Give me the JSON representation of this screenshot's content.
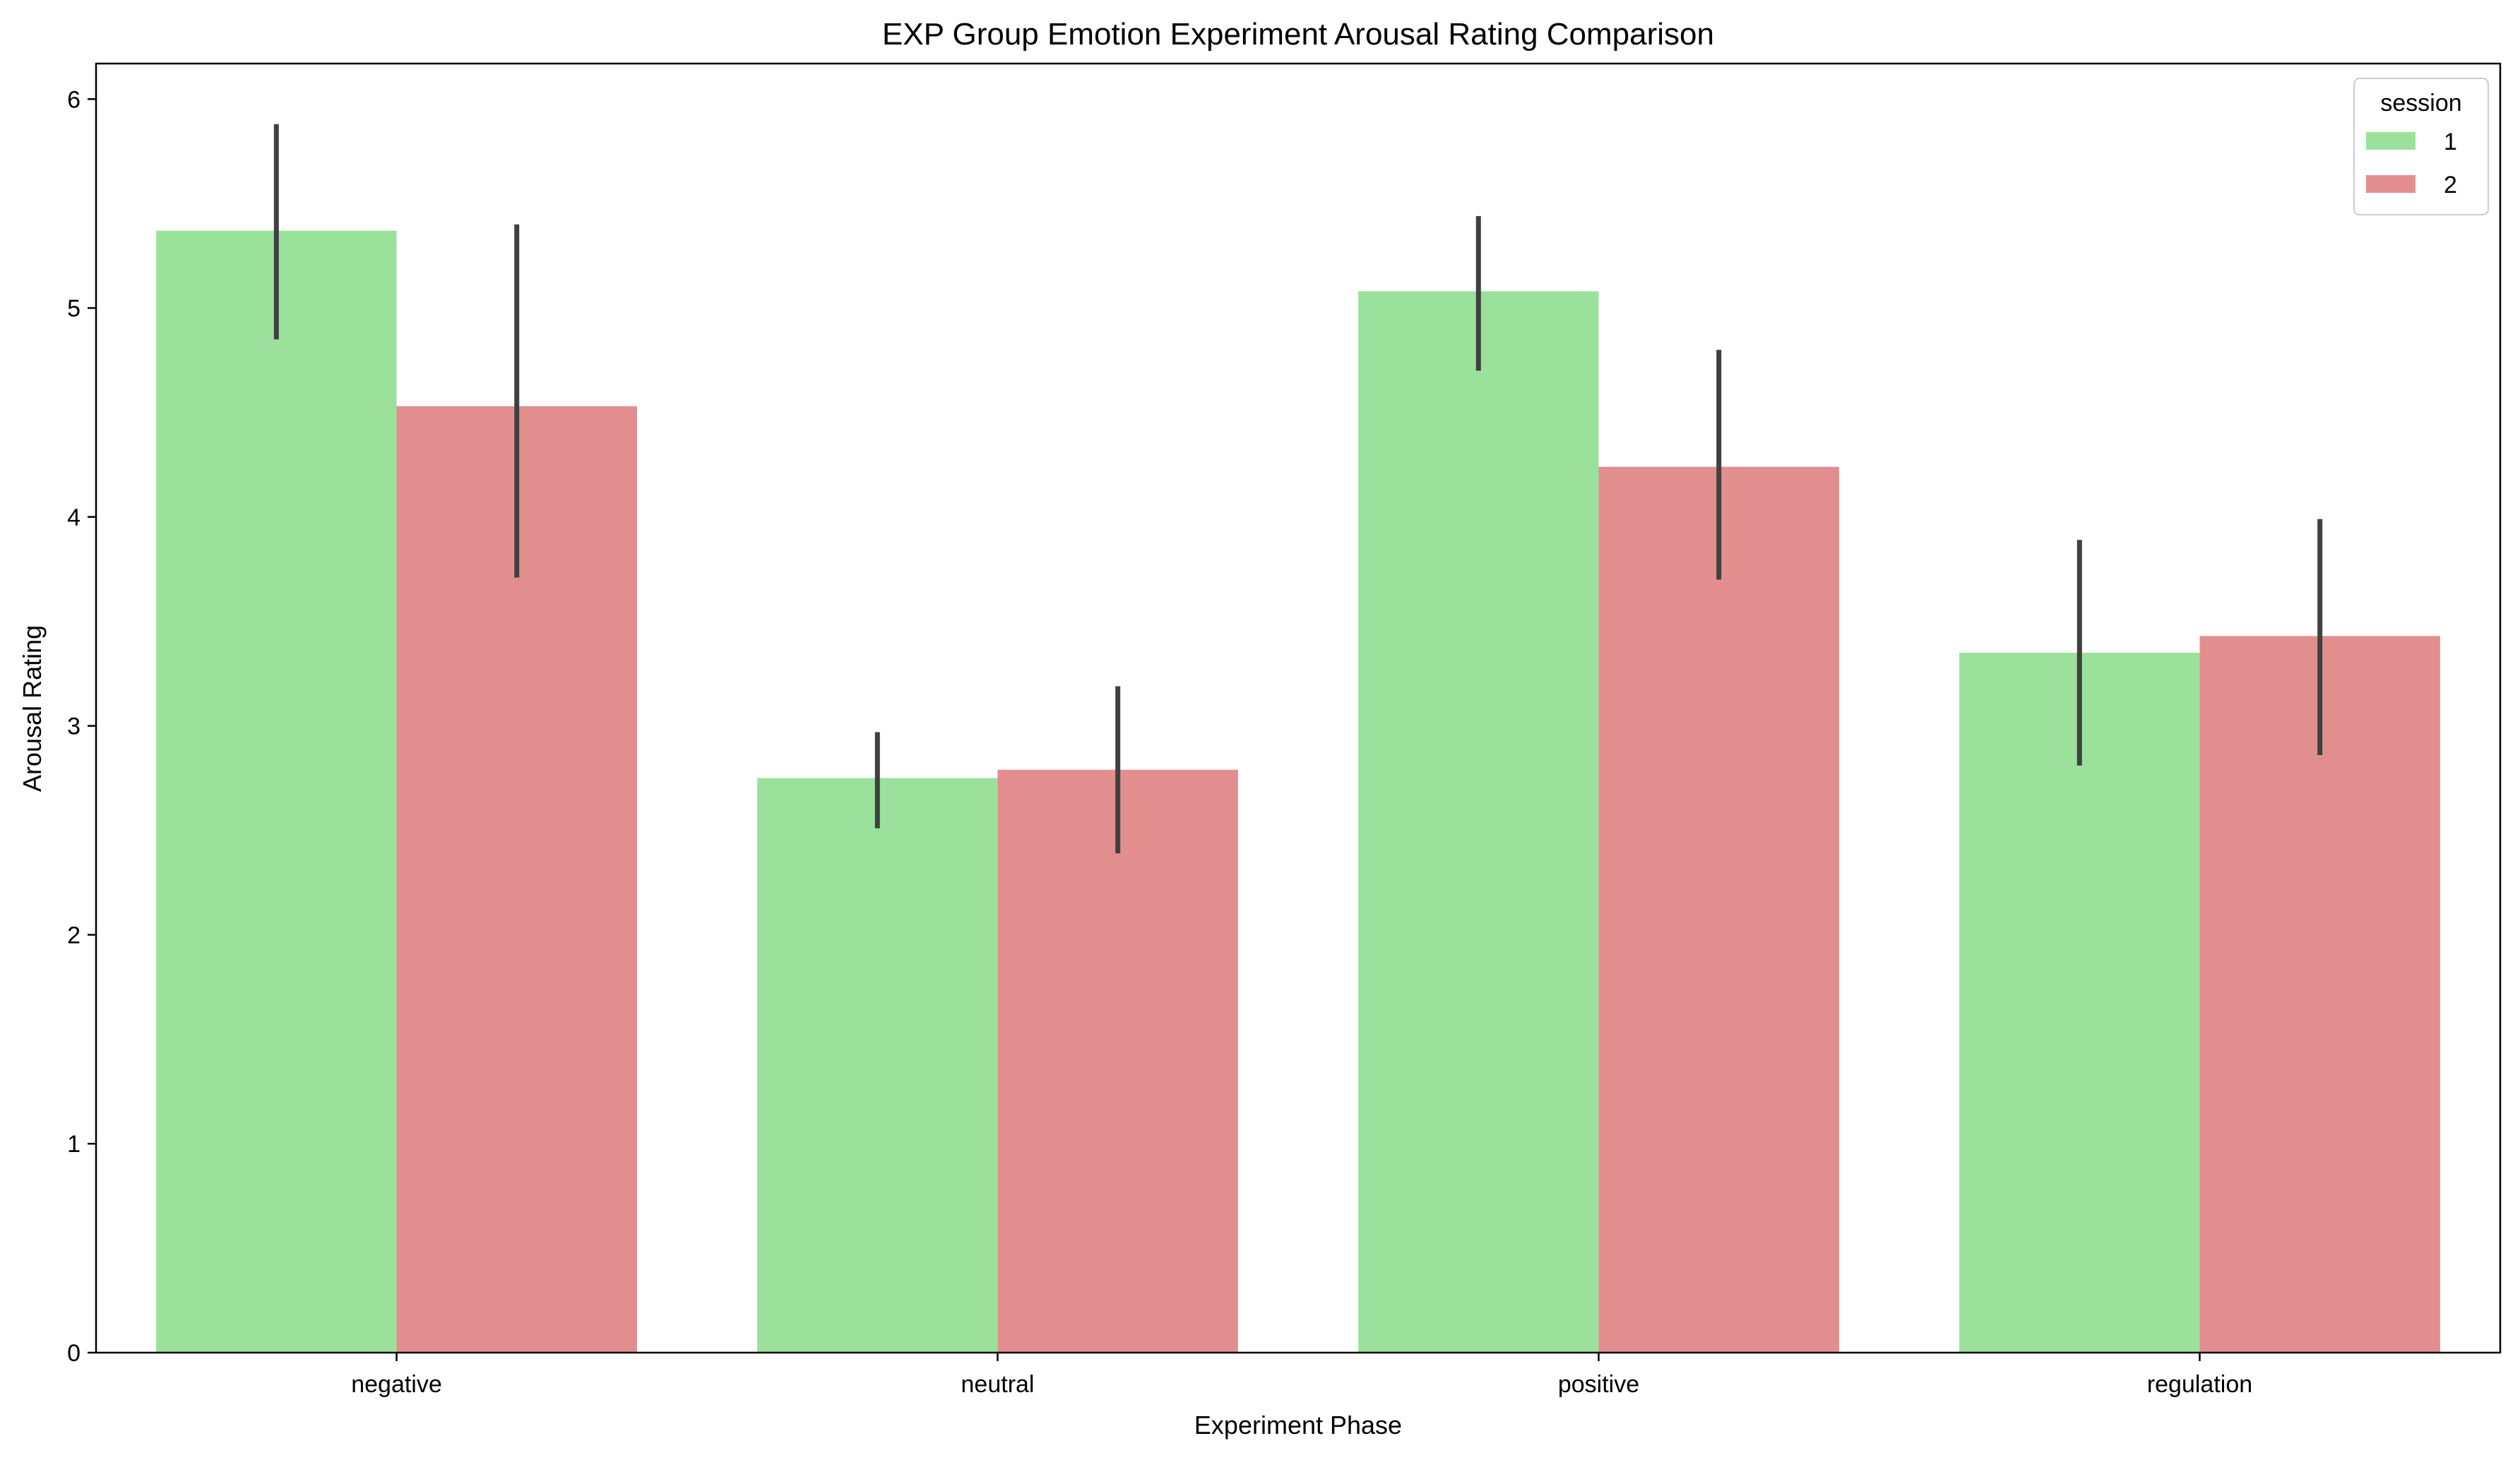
{
  "chart_data": {
    "type": "bar",
    "title": "EXP Group Emotion Experiment Arousal Rating Comparison",
    "xlabel": "Experiment Phase",
    "ylabel": "Arousal Rating",
    "categories": [
      "negative",
      "neutral",
      "positive",
      "regulation"
    ],
    "ylim": [
      0,
      6.17
    ],
    "yticks": [
      "0",
      "1",
      "2",
      "3",
      "4",
      "5",
      "6"
    ],
    "grid": false,
    "legend": {
      "title": "session",
      "position": "top-right"
    },
    "series": [
      {
        "name": "1",
        "color": "#9be19b",
        "values": [
          5.37,
          2.75,
          5.08,
          3.35
        ],
        "error_low": [
          4.85,
          2.51,
          4.7,
          2.81
        ],
        "error_high": [
          5.88,
          2.97,
          5.44,
          3.89
        ]
      },
      {
        "name": "2",
        "color": "#e28e8f",
        "values": [
          4.53,
          2.79,
          4.24,
          3.43
        ],
        "error_low": [
          3.71,
          2.39,
          3.7,
          2.86
        ],
        "error_high": [
          5.4,
          3.19,
          4.8,
          3.99
        ]
      }
    ],
    "errorbar_color": "#404040"
  }
}
